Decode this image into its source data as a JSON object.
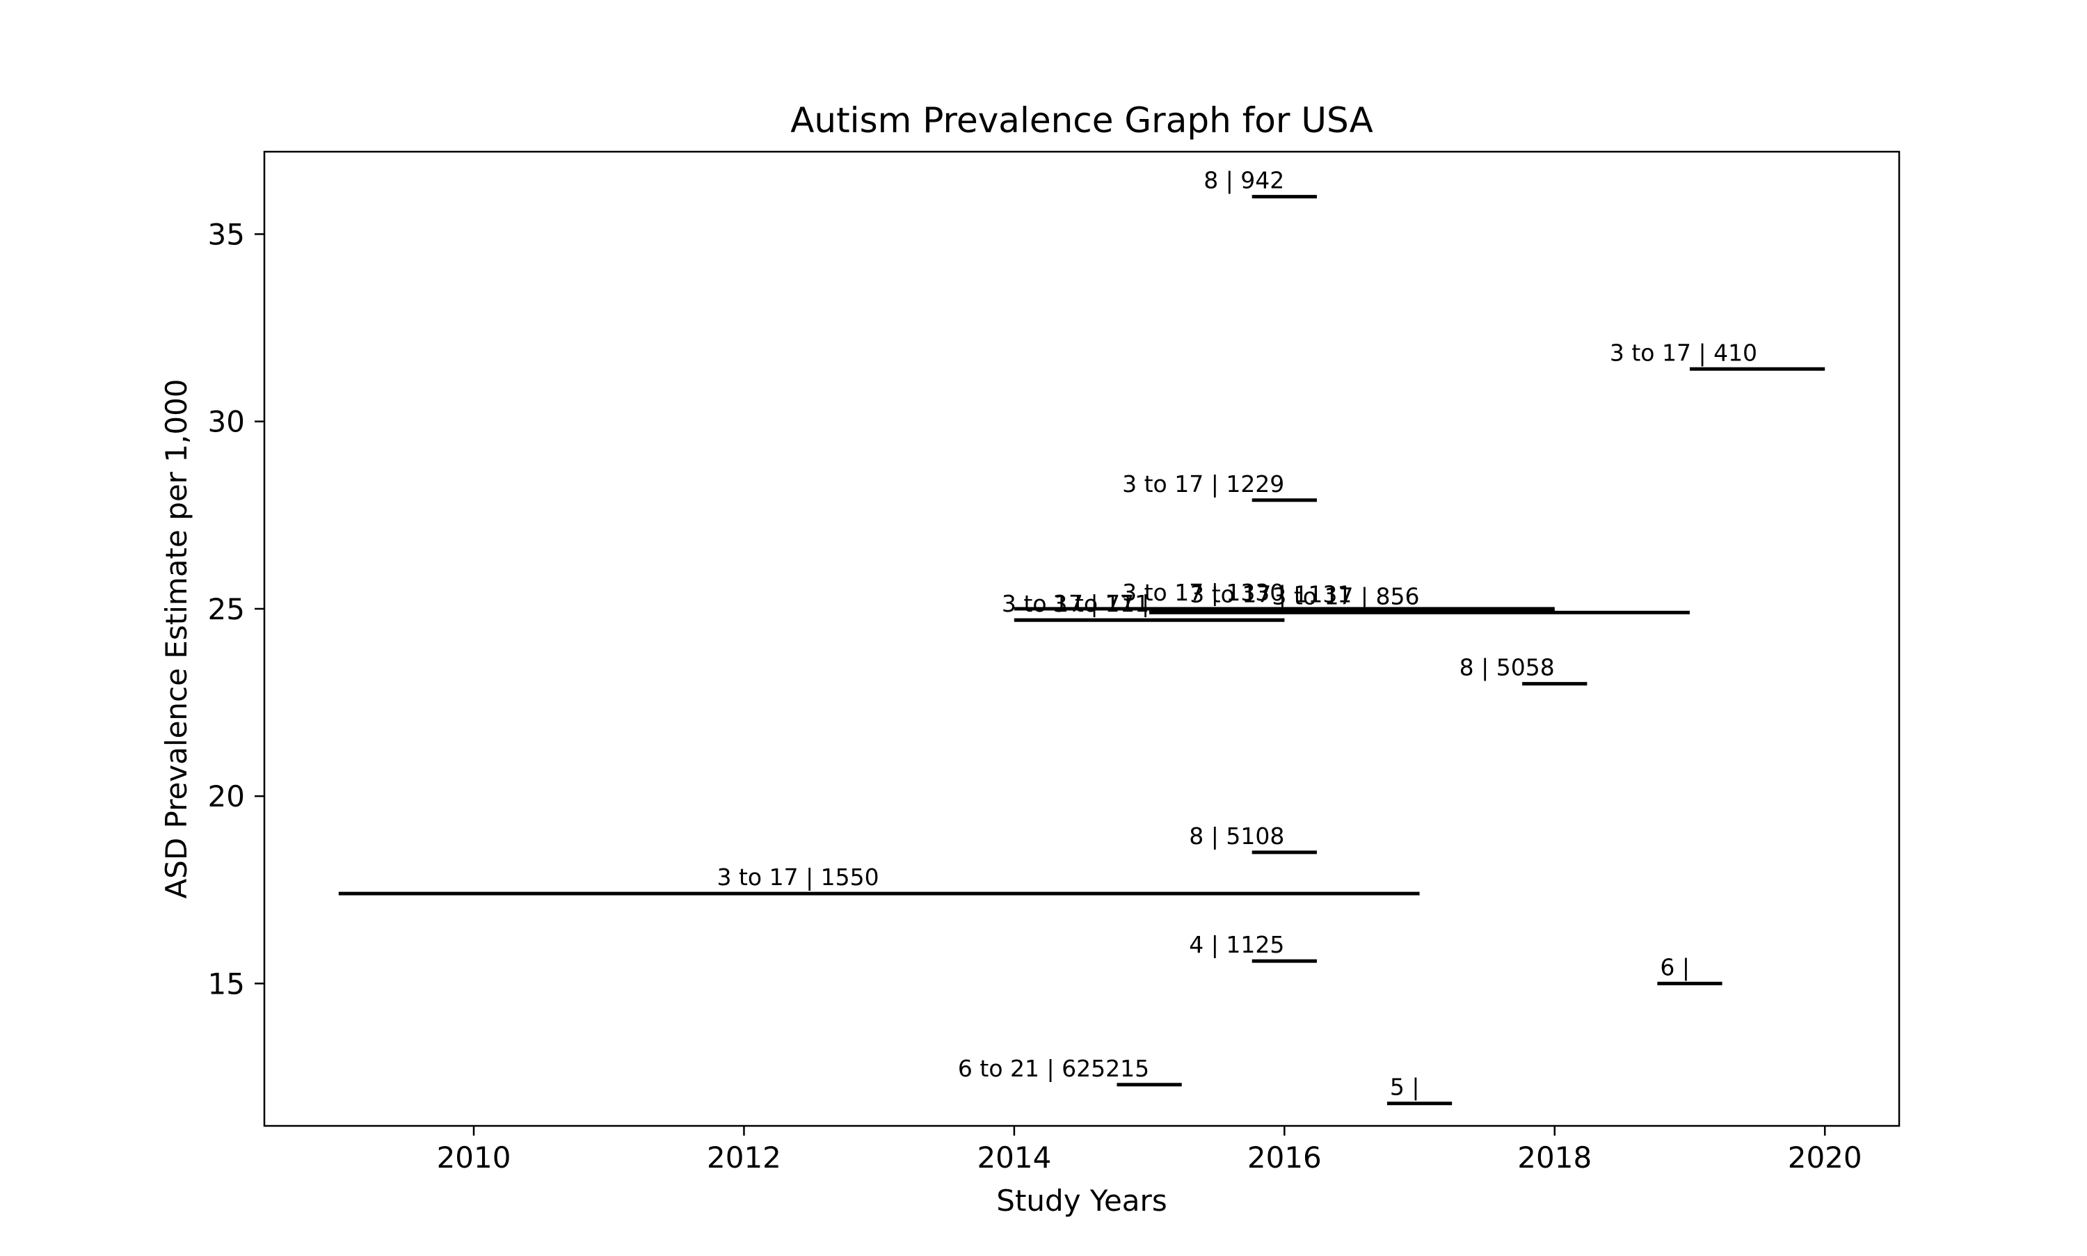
{
  "chart_data": {
    "type": "range-segments",
    "title": "Autism Prevalence Graph for USA",
    "xlabel": "Study Years",
    "ylabel": "ASD Prevalence Estimate per 1,000",
    "xlim": [
      2008.45,
      2020.55
    ],
    "ylim": [
      11.2,
      37.2
    ],
    "xticks": [
      2010,
      2012,
      2014,
      2016,
      2018,
      2020
    ],
    "yticks": [
      15,
      20,
      25,
      30,
      35
    ],
    "grid": false,
    "legend": false,
    "segments": [
      {
        "x_start": 2015.76,
        "x_end": 2016.24,
        "y": 36.0,
        "label": "8 | 942"
      },
      {
        "x_start": 2019.0,
        "x_end": 2020.0,
        "y": 31.4,
        "label": "3 to 17 | 410"
      },
      {
        "x_start": 2015.76,
        "x_end": 2016.24,
        "y": 27.9,
        "label": "3 to 17 | 1229"
      },
      {
        "x_start": 2014.0,
        "x_end": 2018.0,
        "y": 25.0,
        "label": "3 to 17 | 1330"
      },
      {
        "x_start": 2015.0,
        "x_end": 2019.0,
        "y": 24.9,
        "label": "3 to 17 | 856"
      },
      {
        "x_start": 2015.0,
        "x_end": 2018.0,
        "y": 24.95,
        "label": "3 to 17 | 1131"
      },
      {
        "x_start": 2014.0,
        "x_end": 2016.0,
        "y": 24.7,
        "label": "3 to 17 | 711"
      },
      {
        "x_start": 2014.0,
        "x_end": 2016.0,
        "y": 24.7,
        "label": "3 to 17 |"
      },
      {
        "x_start": 2017.76,
        "x_end": 2018.24,
        "y": 23.0,
        "label": "8 | 5058"
      },
      {
        "x_start": 2015.76,
        "x_end": 2016.24,
        "y": 18.5,
        "label": "8 | 5108"
      },
      {
        "x_start": 2009.0,
        "x_end": 2017.0,
        "y": 17.4,
        "label": "3 to 17 | 1550"
      },
      {
        "x_start": 2015.76,
        "x_end": 2016.24,
        "y": 15.6,
        "label": "4 | 1125"
      },
      {
        "x_start": 2018.76,
        "x_end": 2019.24,
        "y": 15.0,
        "label": "6 |"
      },
      {
        "x_start": 2014.76,
        "x_end": 2015.24,
        "y": 12.3,
        "label": "6 to 21 | 625215"
      },
      {
        "x_start": 2016.76,
        "x_end": 2017.24,
        "y": 11.8,
        "label": "5 |"
      }
    ]
  }
}
